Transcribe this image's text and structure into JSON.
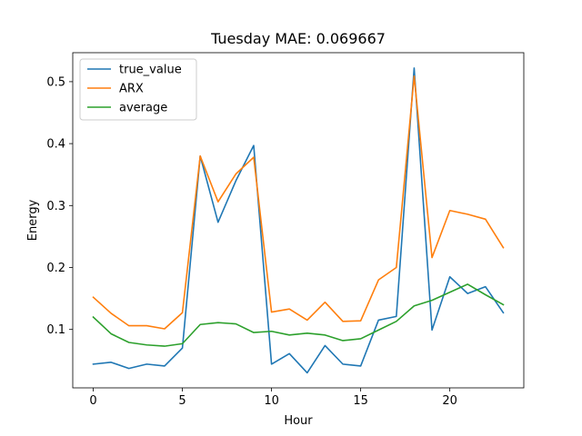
{
  "chart_data": {
    "type": "line",
    "title": "Tuesday MAE: 0.069667",
    "xlabel": "Hour",
    "ylabel": "Energy",
    "xlim": [
      -1.15,
      24.15
    ],
    "ylim": [
      0.0057,
      0.5468
    ],
    "xticks": [
      0,
      5,
      10,
      15,
      20
    ],
    "yticks": [
      0.1,
      0.2,
      0.3,
      0.4,
      0.5
    ],
    "grid": false,
    "legend_position": "top-left",
    "x": [
      0,
      1,
      2,
      3,
      4,
      5,
      6,
      7,
      8,
      9,
      10,
      11,
      12,
      13,
      14,
      15,
      16,
      17,
      18,
      19,
      20,
      21,
      22,
      23
    ],
    "series": [
      {
        "name": "true_value",
        "color": "#1f77b4",
        "values": [
          0.044,
          0.047,
          0.037,
          0.044,
          0.041,
          0.07,
          0.38,
          0.273,
          0.34,
          0.397,
          0.044,
          0.061,
          0.03,
          0.074,
          0.044,
          0.041,
          0.115,
          0.121,
          0.522,
          0.099,
          0.185,
          0.158,
          0.169,
          0.127
        ]
      },
      {
        "name": "ARX",
        "color": "#ff7f0e",
        "values": [
          0.152,
          0.126,
          0.106,
          0.106,
          0.101,
          0.127,
          0.38,
          0.306,
          0.351,
          0.378,
          0.128,
          0.133,
          0.115,
          0.144,
          0.113,
          0.114,
          0.18,
          0.2,
          0.509,
          0.216,
          0.292,
          0.286,
          0.278,
          0.232
        ]
      },
      {
        "name": "average",
        "color": "#2ca02c",
        "values": [
          0.12,
          0.093,
          0.079,
          0.075,
          0.073,
          0.077,
          0.108,
          0.111,
          0.109,
          0.095,
          0.097,
          0.091,
          0.094,
          0.091,
          0.082,
          0.085,
          0.099,
          0.113,
          0.138,
          0.147,
          0.16,
          0.173,
          0.156,
          0.14
        ]
      }
    ]
  }
}
